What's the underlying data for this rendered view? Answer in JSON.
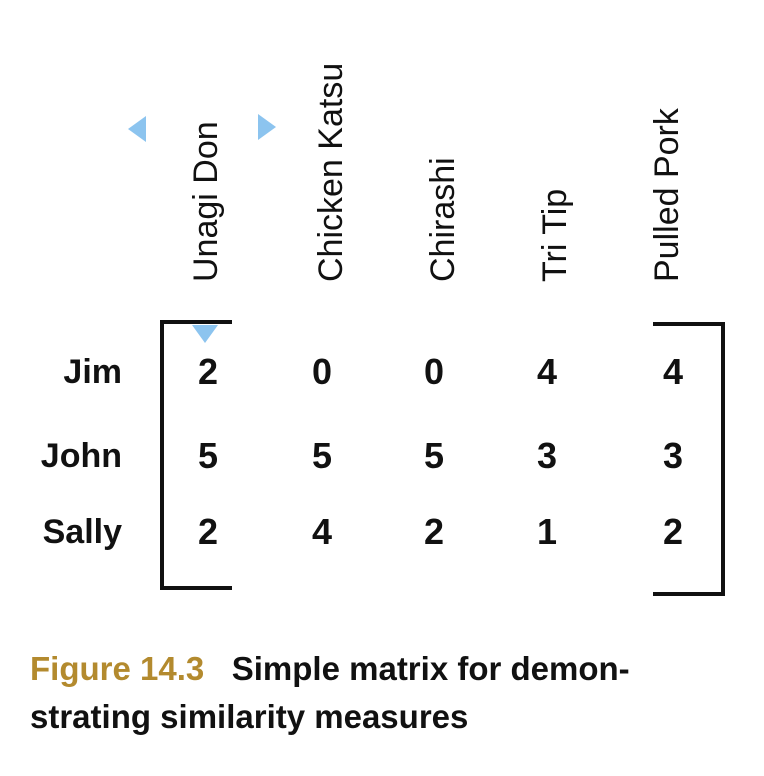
{
  "matrix": {
    "columns": [
      "Unagi Don",
      "Chicken Katsu",
      "Chirashi",
      "Tri Tip",
      "Pulled Pork"
    ],
    "rows": [
      {
        "label": "Jim",
        "values": [
          2,
          0,
          0,
          4,
          4
        ]
      },
      {
        "label": "John",
        "values": [
          5,
          5,
          5,
          3,
          3
        ]
      },
      {
        "label": "Sally",
        "values": [
          2,
          4,
          2,
          1,
          2
        ]
      }
    ]
  },
  "caption": {
    "figure_label": "Figure 14.3",
    "line1": "Simple matrix for demon-",
    "line2": "strating similarity measures"
  },
  "colors": {
    "figure_label": "#b38a2e",
    "handles": "#8cc4ef",
    "text": "#111111"
  },
  "icons": [
    "left-triangle-handle-icon",
    "right-triangle-handle-icon",
    "down-triangle-handle-icon"
  ]
}
